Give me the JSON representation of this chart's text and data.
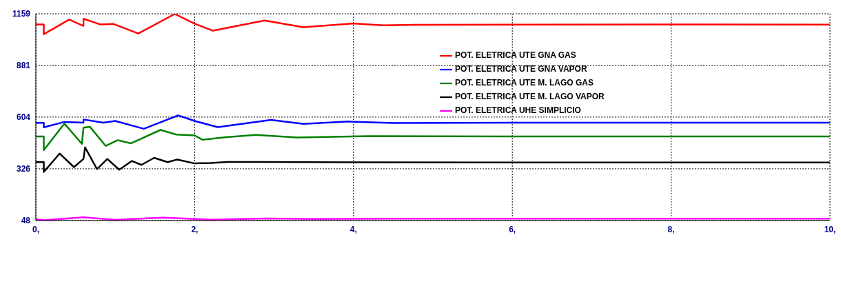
{
  "chart_data": {
    "type": "line",
    "xlim": [
      0,
      10
    ],
    "ylim": [
      48,
      1159
    ],
    "xticks": [
      {
        "value": 0,
        "label": "0,"
      },
      {
        "value": 2,
        "label": "2,"
      },
      {
        "value": 4,
        "label": "4,"
      },
      {
        "value": 6,
        "label": "6,"
      },
      {
        "value": 8,
        "label": "8,"
      },
      {
        "value": 10,
        "label": "10,"
      }
    ],
    "yticks": [
      48,
      326,
      604,
      881,
      1159
    ],
    "grid": true,
    "legend": "top right",
    "marker": "none",
    "line_style": "solid",
    "series": [
      {
        "name": "POT. ELETRICA UTE GNA GAS",
        "color": "#ff0000",
        "x": [
          0,
          0.1,
          0.1,
          0.42,
          0.6,
          0.6,
          0.81,
          0.98,
          1.29,
          1.75,
          2,
          2.23,
          2.88,
          3.37,
          3.99,
          4.37,
          4.77,
          6,
          8,
          10
        ],
        "values": [
          1102,
          1102,
          1049,
          1128,
          1094,
          1132,
          1102,
          1104,
          1053,
          1158,
          1106,
          1068,
          1123,
          1087,
          1107,
          1097,
          1100,
          1101,
          1102,
          1101
        ]
      },
      {
        "name": "POT. ELETRICA UTE GNA VAPOR",
        "color": "#0000ff",
        "x": [
          0,
          0.1,
          0.1,
          0.36,
          0.6,
          0.6,
          0.85,
          1.0,
          1.36,
          1.79,
          2,
          2.29,
          2.96,
          3.37,
          3.94,
          4.5,
          6,
          8,
          10
        ],
        "values": [
          573,
          573,
          549,
          578,
          574,
          591,
          574,
          583,
          541,
          613,
          583,
          550,
          589,
          567,
          580,
          572,
          574,
          574,
          574
        ]
      },
      {
        "name": "POT. ELETRICA UTE M. LAGO GAS",
        "color": "#008000",
        "x": [
          0,
          0.1,
          0.1,
          0.36,
          0.58,
          0.6,
          0.68,
          0.88,
          1.03,
          1.2,
          1.57,
          1.77,
          2,
          2.1,
          2.4,
          2.77,
          3.29,
          4.2,
          6,
          8,
          10
        ],
        "values": [
          500,
          500,
          427,
          569,
          460,
          547,
          552,
          449,
          480,
          463,
          535,
          510,
          505,
          482,
          496,
          508,
          494,
          502,
          500,
          500,
          500
        ]
      },
      {
        "name": "POT. ELETRICA UTE M. LAGO VAPOR",
        "color": "#000000",
        "x": [
          0,
          0.1,
          0.1,
          0.3,
          0.48,
          0.6,
          0.62,
          0.77,
          0.9,
          1.05,
          1.21,
          1.33,
          1.49,
          1.66,
          1.78,
          2,
          2.2,
          2.42,
          2.8,
          4,
          6,
          8,
          10
        ],
        "values": [
          362,
          362,
          309,
          408,
          335,
          379,
          441,
          324,
          379,
          321,
          368,
          347,
          385,
          362,
          376,
          355,
          357,
          363,
          363,
          361,
          360,
          360,
          360
        ]
      },
      {
        "name": "POT. ELETRICA UHE SIMPLICIO",
        "color": "#ff00ff",
        "x": [
          0,
          0.1,
          0.6,
          1.0,
          1.6,
          2.2,
          2.9,
          3.5,
          4.5,
          6,
          8,
          10
        ],
        "values": [
          55,
          50,
          66,
          52,
          64,
          53,
          59,
          56,
          58,
          58,
          58,
          58
        ]
      }
    ]
  }
}
